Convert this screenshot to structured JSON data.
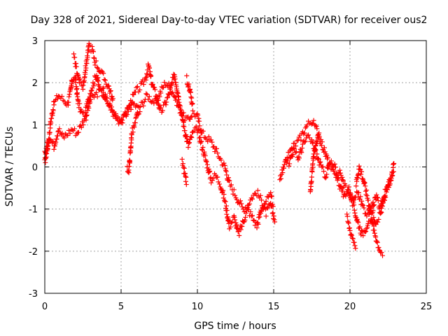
{
  "chart_data": {
    "type": "scatter",
    "title": "Day 328 of 2021, Sidereal Day-to-day VTEC variation (SDTVAR) for receiver ous2",
    "xlabel": "GPS time / hours",
    "ylabel": "SDTVAR / TECUs",
    "xlim": [
      0,
      25
    ],
    "ylim": [
      -3,
      3
    ],
    "x_ticks": [
      0,
      5,
      10,
      15,
      20,
      25
    ],
    "y_ticks": [
      -3,
      -2,
      -1,
      0,
      1,
      2,
      3
    ],
    "x_tick_labels": [
      "0",
      "5",
      "10",
      "15",
      "20",
      "25"
    ],
    "y_tick_labels": [
      "-3",
      "-2",
      "-1",
      "0",
      "1",
      "2",
      "3"
    ],
    "grid": true,
    "marker": "+",
    "series": [
      {
        "name": "SDTVAR",
        "color": "#ff0000",
        "tracks": [
          [
            [
              0.0,
              0.1
            ],
            [
              0.2,
              0.5
            ],
            [
              0.4,
              1.1
            ],
            [
              0.6,
              1.5
            ],
            [
              0.9,
              1.7
            ],
            [
              1.2,
              1.6
            ],
            [
              1.5,
              1.5
            ],
            [
              1.7,
              1.8
            ],
            [
              1.8,
              2.1
            ],
            [
              2.0,
              2.1
            ],
            [
              2.2,
              1.5
            ],
            [
              2.4,
              1.3
            ],
            [
              2.6,
              1.2
            ],
            [
              2.8,
              1.5
            ],
            [
              3.0,
              1.8
            ],
            [
              3.2,
              2.0
            ],
            [
              3.4,
              2.2
            ],
            [
              3.6,
              1.8
            ],
            [
              3.8,
              1.9
            ],
            [
              4.0,
              1.6
            ],
            [
              4.3,
              1.4
            ],
            [
              4.6,
              1.2
            ],
            [
              4.9,
              1.0
            ],
            [
              5.2,
              1.2
            ],
            [
              5.5,
              1.4
            ],
            [
              5.8,
              1.5
            ],
            [
              6.1,
              1.4
            ],
            [
              6.4,
              1.5
            ],
            [
              6.7,
              1.7
            ],
            [
              7.0,
              1.6
            ],
            [
              7.3,
              1.5
            ],
            [
              7.6,
              1.8
            ],
            [
              7.9,
              2.0
            ],
            [
              8.2,
              1.9
            ],
            [
              8.5,
              1.7
            ],
            [
              8.8,
              1.4
            ],
            [
              9.1,
              1.2
            ],
            [
              9.4,
              1.1
            ],
            [
              9.7,
              1.3
            ],
            [
              10.0,
              1.2
            ],
            [
              10.3,
              0.8
            ],
            [
              10.6,
              0.7
            ],
            [
              10.9,
              0.6
            ],
            [
              11.2,
              0.4
            ],
            [
              11.5,
              0.2
            ],
            [
              11.8,
              0.0
            ],
            [
              12.1,
              -0.4
            ],
            [
              12.4,
              -0.6
            ],
            [
              12.7,
              -0.8
            ],
            [
              13.0,
              -1.0
            ],
            [
              13.3,
              -0.9
            ],
            [
              13.6,
              -0.7
            ],
            [
              13.9,
              -0.6
            ],
            [
              14.2,
              -0.8
            ],
            [
              14.5,
              -1.1
            ],
            [
              14.8,
              -0.9
            ],
            [
              15.1,
              -1.3
            ]
          ],
          [
            [
              0.0,
              0.3
            ],
            [
              0.3,
              0.7
            ],
            [
              0.6,
              0.5
            ],
            [
              0.9,
              0.9
            ],
            [
              1.2,
              0.7
            ],
            [
              1.5,
              0.8
            ],
            [
              1.8,
              0.9
            ],
            [
              2.1,
              0.8
            ],
            [
              2.4,
              1.0
            ],
            [
              2.7,
              1.2
            ],
            [
              3.0,
              1.6
            ],
            [
              3.3,
              1.7
            ],
            [
              3.6,
              1.8
            ],
            [
              3.9,
              1.7
            ],
            [
              4.2,
              1.5
            ],
            [
              4.5,
              1.3
            ],
            [
              4.8,
              1.2
            ],
            [
              5.1,
              1.1
            ],
            [
              5.4,
              1.3
            ],
            [
              5.7,
              1.6
            ],
            [
              6.0,
              1.8
            ],
            [
              6.3,
              1.9
            ],
            [
              6.6,
              2.1
            ],
            [
              6.8,
              2.4
            ],
            [
              7.0,
              2.0
            ],
            [
              7.3,
              1.7
            ],
            [
              7.6,
              1.3
            ],
            [
              7.9,
              1.5
            ],
            [
              8.2,
              1.8
            ],
            [
              8.5,
              2.2
            ],
            [
              8.8,
              1.6
            ],
            [
              9.1,
              1.0
            ],
            [
              9.4,
              0.5
            ],
            [
              9.7,
              0.8
            ],
            [
              10.0,
              0.9
            ],
            [
              10.3,
              0.5
            ],
            [
              10.6,
              0.1
            ],
            [
              10.9,
              -0.3
            ],
            [
              11.2,
              -0.2
            ],
            [
              11.5,
              -0.4
            ],
            [
              11.8,
              -0.8
            ],
            [
              12.1,
              -1.4
            ],
            [
              12.4,
              -1.2
            ],
            [
              12.7,
              -1.6
            ],
            [
              13.0,
              -1.3
            ],
            [
              13.3,
              -1.0
            ],
            [
              13.6,
              -1.2
            ],
            [
              13.9,
              -1.4
            ],
            [
              14.2,
              -1.0
            ],
            [
              14.5,
              -0.8
            ],
            [
              14.8,
              -0.7
            ],
            [
              15.0,
              -0.9
            ]
          ],
          [
            [
              1.9,
              2.6
            ],
            [
              2.1,
              2.3
            ],
            [
              2.3,
              2.0
            ],
            [
              2.5,
              1.9
            ],
            [
              2.7,
              2.4
            ],
            [
              2.9,
              2.9
            ],
            [
              3.1,
              2.8
            ],
            [
              3.3,
              2.5
            ],
            [
              3.6,
              2.3
            ],
            [
              3.9,
              2.1
            ],
            [
              4.2,
              1.9
            ],
            [
              4.5,
              1.5
            ]
          ],
          [
            [
              5.4,
              0.0
            ],
            [
              5.5,
              -0.1
            ],
            [
              5.6,
              0.3
            ],
            [
              5.7,
              0.8
            ],
            [
              5.9,
              1.0
            ],
            [
              6.1,
              1.3
            ],
            [
              6.3,
              1.2
            ]
          ],
          [
            [
              9.0,
              0.1
            ],
            [
              9.2,
              -0.2
            ],
            [
              9.3,
              -0.4
            ]
          ],
          [
            [
              9.3,
              2.1
            ],
            [
              9.5,
              1.8
            ],
            [
              9.7,
              1.4
            ]
          ],
          [
            [
              15.4,
              -0.3
            ],
            [
              15.7,
              0.0
            ],
            [
              16.0,
              0.3
            ],
            [
              16.3,
              0.5
            ],
            [
              16.6,
              0.6
            ],
            [
              16.9,
              0.8
            ],
            [
              17.2,
              1.0
            ],
            [
              17.5,
              1.1
            ],
            [
              17.8,
              0.9
            ],
            [
              18.1,
              0.6
            ],
            [
              18.4,
              0.3
            ],
            [
              18.7,
              0.0
            ],
            [
              19.0,
              -0.2
            ],
            [
              19.3,
              -0.1
            ],
            [
              19.6,
              -0.4
            ],
            [
              19.9,
              -0.6
            ],
            [
              20.2,
              -0.8
            ],
            [
              20.5,
              -0.6
            ],
            [
              20.8,
              -0.9
            ],
            [
              21.1,
              -1.1
            ],
            [
              21.4,
              -1.0
            ],
            [
              21.7,
              -1.3
            ],
            [
              22.0,
              -1.1
            ],
            [
              22.3,
              -0.7
            ],
            [
              22.6,
              -0.3
            ],
            [
              22.9,
              0.0
            ]
          ],
          [
            [
              16.0,
              0.1
            ],
            [
              16.3,
              0.4
            ],
            [
              16.6,
              0.2
            ],
            [
              16.9,
              0.5
            ],
            [
              17.2,
              0.7
            ],
            [
              17.5,
              0.6
            ],
            [
              17.8,
              0.3
            ],
            [
              18.1,
              0.0
            ],
            [
              18.4,
              -0.2
            ],
            [
              18.7,
              0.1
            ],
            [
              19.0,
              0.0
            ],
            [
              19.3,
              -0.4
            ],
            [
              19.6,
              -0.7
            ],
            [
              19.9,
              -0.5
            ],
            [
              20.2,
              -0.9
            ],
            [
              20.5,
              -1.3
            ],
            [
              20.8,
              -1.6
            ],
            [
              21.1,
              -1.4
            ],
            [
              21.4,
              -1.0
            ],
            [
              21.7,
              -0.7
            ],
            [
              22.0,
              -1.0
            ],
            [
              22.3,
              -0.6
            ],
            [
              22.6,
              -0.4
            ],
            [
              22.9,
              0.1
            ]
          ],
          [
            [
              17.4,
              -0.6
            ],
            [
              17.6,
              0.2
            ],
            [
              17.8,
              0.6
            ],
            [
              18.0,
              0.9
            ]
          ],
          [
            [
              20.4,
              -0.4
            ],
            [
              20.6,
              0.0
            ],
            [
              20.8,
              -0.2
            ],
            [
              21.0,
              -0.5
            ],
            [
              21.2,
              -0.8
            ],
            [
              21.5,
              -1.4
            ],
            [
              21.8,
              -1.8
            ],
            [
              22.0,
              -2.0
            ],
            [
              22.2,
              -2.1
            ]
          ],
          [
            [
              19.8,
              -1.2
            ],
            [
              20.0,
              -1.5
            ],
            [
              20.2,
              -1.7
            ],
            [
              20.4,
              -1.9
            ]
          ]
        ]
      }
    ]
  }
}
